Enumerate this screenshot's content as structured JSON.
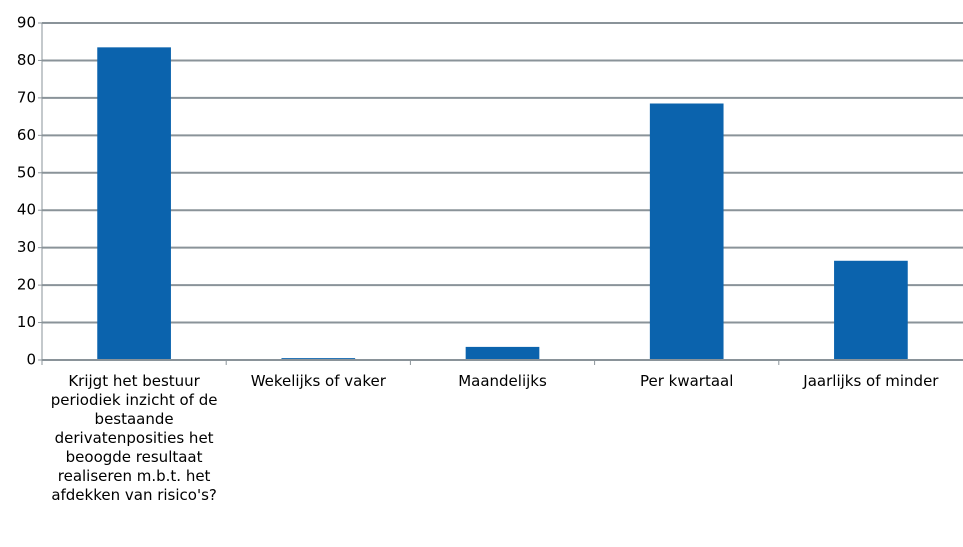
{
  "chart_data": {
    "type": "bar",
    "categories": [
      "Krijgt het bestuur periodiek inzicht of de bestaande derivatenposities het beoogde resultaat realiseren m.b.t. het afdekken van risico's?",
      "Wekelijks of vaker",
      "Maandelijks",
      "Per kwartaal",
      "Jaarlijks of minder"
    ],
    "values": [
      83.5,
      0.5,
      3.5,
      68.5,
      26.5
    ],
    "color": "#0b63ad",
    "ylim": [
      0,
      90
    ],
    "yticks": [
      0,
      10,
      20,
      30,
      40,
      50,
      60,
      70,
      80,
      90
    ],
    "grid": true
  }
}
